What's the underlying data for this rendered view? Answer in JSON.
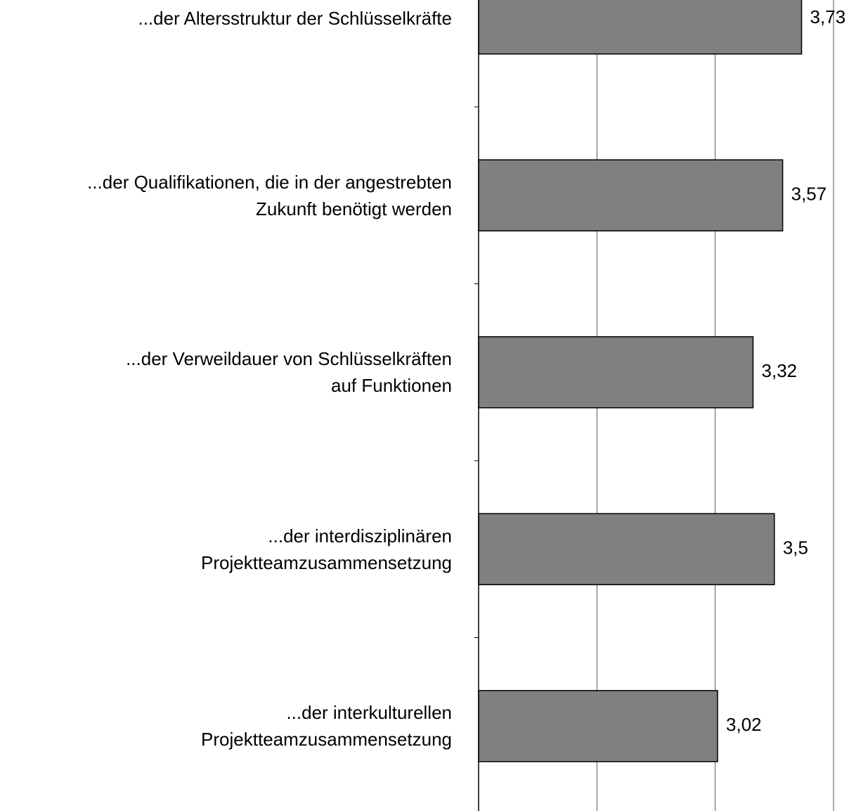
{
  "chart_data": {
    "type": "bar",
    "orientation": "horizontal",
    "categories": [
      "...der Altersstruktur der Schlüsselkräfte",
      "...der Qualifikationen, die in der angestrebten\nZukunft benötigt werden",
      "...der Verweildauer von Schlüsselkräften\nauf Funktionen",
      "...der interdisziplinären\nProjektteamzusammensetzung",
      "...der interkulturellen\nProjektteamzusammensetzung"
    ],
    "values": [
      3.73,
      3.57,
      3.32,
      3.5,
      3.02
    ],
    "value_labels": [
      "3,73",
      "3,57",
      "3,32",
      "3,5",
      "3,02"
    ],
    "color": "#808080",
    "xlim": [
      1,
      4
    ],
    "xticks": [
      2,
      3,
      4
    ],
    "grid": true
  }
}
